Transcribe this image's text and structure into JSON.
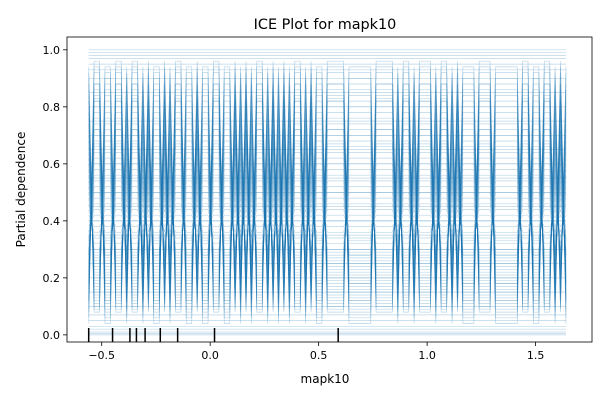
{
  "chart_data": {
    "type": "line",
    "title": "ICE Plot for mapk10",
    "xlabel": "mapk10",
    "ylabel": "Partial dependence",
    "xlim": [
      -0.66,
      1.76
    ],
    "ylim": [
      -0.025,
      1.045
    ],
    "x_ticks": [
      -0.5,
      0.0,
      0.5,
      1.0,
      1.5
    ],
    "x_tick_labels": [
      "−0.5",
      "0.0",
      "0.5",
      "1.0",
      "1.5"
    ],
    "y_ticks": [
      0.0,
      0.2,
      0.4,
      0.6,
      0.8,
      1.0
    ],
    "y_tick_labels": [
      "0.0",
      "0.2",
      "0.4",
      "0.6",
      "0.8",
      "1.0"
    ],
    "grid": false,
    "line_color": "#1f77b4",
    "line_opacity": 0.3,
    "grid_x": [
      -0.56,
      -0.535,
      -0.51,
      -0.485,
      -0.46,
      -0.435,
      -0.41,
      -0.385,
      -0.36,
      -0.335,
      -0.31,
      -0.285,
      -0.26,
      -0.235,
      -0.21,
      -0.185,
      -0.16,
      -0.135,
      -0.11,
      -0.085,
      -0.06,
      -0.035,
      -0.01,
      0.015,
      0.04,
      0.065,
      0.09,
      0.115,
      0.14,
      0.165,
      0.19,
      0.215,
      0.24,
      0.265,
      0.29,
      0.315,
      0.34,
      0.365,
      0.39,
      0.415,
      0.44,
      0.465,
      0.49,
      0.515,
      0.54,
      0.565,
      0.59,
      0.615,
      0.64,
      0.665,
      0.69,
      0.715,
      0.74,
      0.765,
      0.79,
      0.815,
      0.84,
      0.865,
      0.89,
      0.915,
      0.94,
      0.965,
      0.99,
      1.015,
      1.04,
      1.065,
      1.09,
      1.115,
      1.14,
      1.165,
      1.19,
      1.215,
      1.24,
      1.265,
      1.29,
      1.315,
      1.34,
      1.365,
      1.39,
      1.415,
      1.44,
      1.465,
      1.49,
      1.515,
      1.54,
      1.565,
      1.59,
      1.615,
      1.64
    ],
    "pattern": [
      0,
      1,
      1,
      0,
      0,
      1,
      1,
      0,
      1,
      1,
      0,
      1,
      0,
      0,
      1,
      0,
      1,
      1,
      0,
      0,
      1,
      0,
      0,
      1,
      1,
      0,
      0,
      1,
      0,
      1,
      0,
      1,
      1,
      0,
      1,
      0,
      1,
      0,
      1,
      1,
      0,
      1,
      0,
      0,
      1,
      1,
      1,
      1,
      0,
      0,
      0,
      0,
      0,
      1,
      1,
      1,
      1,
      0,
      1,
      1,
      0,
      1,
      1,
      1,
      0,
      1,
      1,
      0,
      1,
      0,
      0,
      0,
      1,
      1,
      1,
      0,
      0,
      0,
      0,
      0,
      1,
      1,
      0,
      0,
      1,
      1,
      0,
      1,
      0
    ],
    "series_levels": [
      [
        1.0,
        1.0
      ],
      [
        0.99,
        0.99
      ],
      [
        0.98,
        0.98
      ],
      [
        0.97,
        0.97
      ],
      [
        0.95,
        0.95
      ],
      [
        0.93,
        0.93
      ],
      [
        0.9,
        0.9
      ],
      [
        0.0,
        0.0
      ],
      [
        0.005,
        0.005
      ],
      [
        0.01,
        0.01
      ],
      [
        0.02,
        0.02
      ],
      [
        0.03,
        0.03
      ],
      [
        0.05,
        0.05
      ],
      [
        0.07,
        0.07
      ],
      [
        0.1,
        0.1
      ],
      [
        0.04,
        0.96
      ],
      [
        0.06,
        0.94
      ],
      [
        0.08,
        0.92
      ],
      [
        0.09,
        0.88
      ],
      [
        0.11,
        0.86
      ],
      [
        0.12,
        0.84
      ],
      [
        0.13,
        0.83
      ],
      [
        0.14,
        0.82
      ],
      [
        0.15,
        0.8
      ],
      [
        0.16,
        0.78
      ],
      [
        0.17,
        0.76
      ],
      [
        0.18,
        0.74
      ],
      [
        0.19,
        0.72
      ],
      [
        0.2,
        0.7
      ],
      [
        0.21,
        0.68
      ],
      [
        0.22,
        0.66
      ],
      [
        0.23,
        0.64
      ],
      [
        0.24,
        0.62
      ],
      [
        0.25,
        0.6
      ],
      [
        0.26,
        0.58
      ],
      [
        0.27,
        0.56
      ],
      [
        0.28,
        0.54
      ],
      [
        0.29,
        0.52
      ],
      [
        0.3,
        0.5
      ],
      [
        0.32,
        0.48
      ],
      [
        0.34,
        0.46
      ],
      [
        0.36,
        0.44
      ],
      [
        0.38,
        0.42
      ],
      [
        0.4,
        0.4
      ],
      [
        0.42,
        0.38
      ],
      [
        0.44,
        0.36
      ],
      [
        0.46,
        0.34
      ],
      [
        0.48,
        0.32
      ],
      [
        0.5,
        0.3
      ],
      [
        0.52,
        0.29
      ],
      [
        0.54,
        0.28
      ],
      [
        0.56,
        0.27
      ],
      [
        0.58,
        0.26
      ],
      [
        0.6,
        0.25
      ],
      [
        0.62,
        0.24
      ],
      [
        0.64,
        0.23
      ],
      [
        0.66,
        0.22
      ],
      [
        0.68,
        0.21
      ],
      [
        0.7,
        0.2
      ],
      [
        0.72,
        0.19
      ],
      [
        0.74,
        0.18
      ],
      [
        0.76,
        0.17
      ],
      [
        0.78,
        0.16
      ],
      [
        0.8,
        0.15
      ],
      [
        0.82,
        0.14
      ],
      [
        0.84,
        0.13
      ],
      [
        0.86,
        0.12
      ],
      [
        0.88,
        0.11
      ],
      [
        0.9,
        0.1
      ],
      [
        0.92,
        0.09
      ],
      [
        0.94,
        0.08
      ],
      [
        0.2,
        0.2
      ],
      [
        0.25,
        0.25
      ],
      [
        0.3,
        0.3
      ],
      [
        0.35,
        0.35
      ],
      [
        0.4,
        0.4
      ],
      [
        0.45,
        0.45
      ],
      [
        0.5,
        0.5
      ],
      [
        0.55,
        0.55
      ],
      [
        0.6,
        0.6
      ],
      [
        0.65,
        0.65
      ],
      [
        0.7,
        0.7
      ],
      [
        0.75,
        0.75
      ],
      [
        0.8,
        0.8
      ],
      [
        0.85,
        0.85
      ],
      [
        0.15,
        0.15
      ],
      [
        0.12,
        0.88
      ],
      [
        0.18,
        0.82
      ],
      [
        0.28,
        0.72
      ],
      [
        0.33,
        0.67
      ]
    ],
    "rug_x": [
      -0.56,
      -0.45,
      -0.37,
      -0.34,
      -0.3,
      -0.23,
      -0.15,
      0.02,
      0.59
    ]
  }
}
